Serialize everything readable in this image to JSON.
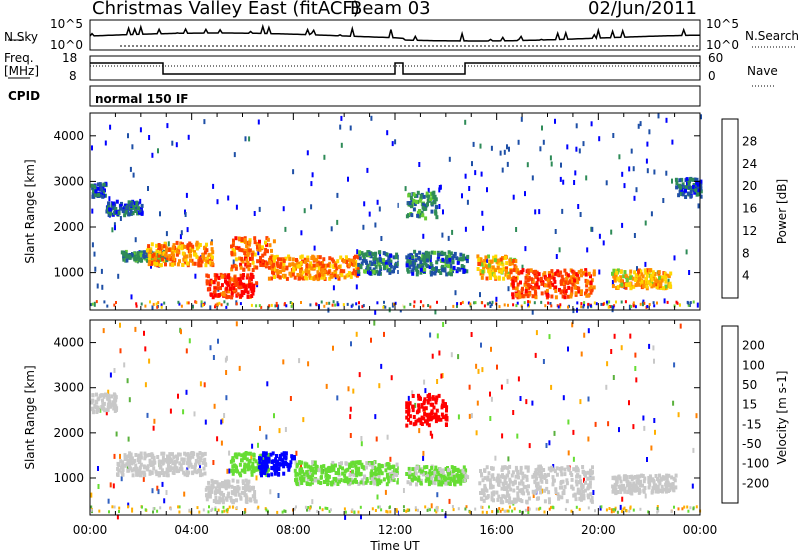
{
  "header": {
    "title": "Christmas Valley East (fitACF)",
    "beam": "Beam 03",
    "date": "02/Jun/2011"
  },
  "sky_panel": {
    "left_label": "N.Sky",
    "left_ticks": [
      "10^5",
      "10^0"
    ],
    "right_label": "N.Search",
    "right_ticks": [
      "10^5",
      "10^0"
    ]
  },
  "freq_panel": {
    "left_label_1": "Freq.",
    "left_label_2": "[MHz]",
    "left_ticks": [
      "18",
      "8"
    ],
    "right_label": "Nave",
    "right_ticks": [
      "60",
      "0"
    ]
  },
  "cpid": {
    "label": "CPID",
    "value": "normal 150 IF"
  },
  "colors": {
    "power": [
      "#0000ff",
      "#1e4fa6",
      "#2e8b57",
      "#66cc33",
      "#ffd700",
      "#ff8c00",
      "#ff4000",
      "#ff0000"
    ],
    "velocity": [
      "#0000ff",
      "#3060c0",
      "#5ab13c",
      "#66dd33",
      "#c8c8c8",
      "#ffb000",
      "#ff8000",
      "#ff4000",
      "#ff0000"
    ]
  },
  "chart_data": [
    {
      "type": "heatmap",
      "panel": "power",
      "ylabel": "Slant Range [km]",
      "yticks": [
        "4000",
        "3000",
        "2000",
        "1000"
      ],
      "ylim": [
        180,
        4500
      ],
      "xlim": [
        "00:00",
        "24:00"
      ],
      "colorbar_label": "Power [dB]",
      "colorbar_ticks": [
        "28",
        "24",
        "20",
        "16",
        "12",
        "8",
        "4"
      ],
      "scale": [
        0,
        32
      ],
      "bands": [
        {
          "t0": 0.0,
          "t1": 0.6,
          "r0": 2700,
          "r1": 3000,
          "value": 6
        },
        {
          "t0": 0.6,
          "t1": 2.0,
          "r0": 2300,
          "r1": 2600,
          "value": 6
        },
        {
          "t0": 1.2,
          "t1": 3.0,
          "r0": 1300,
          "r1": 1500,
          "value": 10
        },
        {
          "t0": 2.2,
          "t1": 4.8,
          "r0": 1200,
          "r1": 1700,
          "value": 22
        },
        {
          "t0": 4.5,
          "t1": 6.5,
          "r0": 500,
          "r1": 1000,
          "value": 28
        },
        {
          "t0": 5.5,
          "t1": 7.2,
          "r0": 1100,
          "r1": 1800,
          "value": 24
        },
        {
          "t0": 7.0,
          "t1": 10.5,
          "r0": 900,
          "r1": 1400,
          "value": 22
        },
        {
          "t0": 10.5,
          "t1": 12.1,
          "r0": 1000,
          "r1": 1500,
          "value": 8
        },
        {
          "t0": 12.4,
          "t1": 13.6,
          "r0": 2200,
          "r1": 2800,
          "value": 10
        },
        {
          "t0": 12.4,
          "t1": 14.8,
          "r0": 1000,
          "r1": 1500,
          "value": 8
        },
        {
          "t0": 15.2,
          "t1": 16.8,
          "r0": 900,
          "r1": 1400,
          "value": 20
        },
        {
          "t0": 16.5,
          "t1": 19.8,
          "r0": 500,
          "r1": 1100,
          "value": 26
        },
        {
          "t0": 20.5,
          "t1": 22.8,
          "r0": 700,
          "r1": 1100,
          "value": 20
        },
        {
          "t0": 23.0,
          "t1": 24.0,
          "r0": 2700,
          "r1": 3100,
          "value": 6
        }
      ]
    },
    {
      "type": "heatmap",
      "panel": "velocity",
      "ylabel": "Slant Range [km]",
      "yticks": [
        "4000",
        "3000",
        "2000",
        "1000"
      ],
      "ylim": [
        180,
        4500
      ],
      "xlim": [
        "00:00",
        "24:00"
      ],
      "xticks": [
        "00:00",
        "04:00",
        "08:00",
        "12:00",
        "16:00",
        "20:00",
        "00:00"
      ],
      "xlabel": "Time UT",
      "colorbar_label": "Velocity [m s-1]",
      "colorbar_ticks": [
        "200",
        "100",
        "50",
        "15",
        "-15",
        "-50",
        "-100",
        "-200"
      ],
      "scale": [
        -250,
        250
      ],
      "bands": [
        {
          "t0": 0.0,
          "t1": 1.0,
          "r0": 2500,
          "r1": 2900,
          "value": 0
        },
        {
          "t0": 1.0,
          "t1": 4.5,
          "r0": 1100,
          "r1": 1600,
          "value": 0
        },
        {
          "t0": 4.5,
          "t1": 6.5,
          "r0": 500,
          "r1": 1000,
          "value": 0
        },
        {
          "t0": 5.5,
          "t1": 7.0,
          "r0": 1100,
          "r1": 1600,
          "value": 60
        },
        {
          "t0": 6.6,
          "t1": 8.0,
          "r0": 1100,
          "r1": 1600,
          "value": 220
        },
        {
          "t0": 8.0,
          "t1": 12.1,
          "r0": 900,
          "r1": 1400,
          "value": 40
        },
        {
          "t0": 12.4,
          "t1": 14.0,
          "r0": 2200,
          "r1": 2900,
          "value": -220
        },
        {
          "t0": 12.4,
          "t1": 14.8,
          "r0": 900,
          "r1": 1300,
          "value": 40
        },
        {
          "t0": 15.2,
          "t1": 19.8,
          "r0": 500,
          "r1": 1300,
          "value": 0
        },
        {
          "t0": 20.5,
          "t1": 23.0,
          "r0": 700,
          "r1": 1100,
          "value": 0
        }
      ]
    }
  ]
}
